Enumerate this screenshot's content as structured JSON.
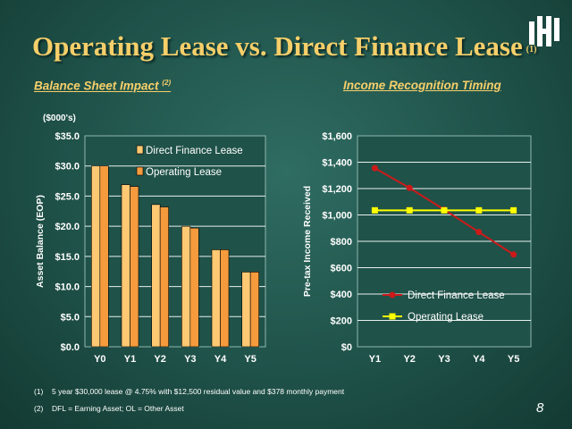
{
  "slide": {
    "title": "Operating Lease vs. Direct Finance Lease",
    "title_note": "(1)",
    "left_subtitle": "Balance Sheet Impact",
    "left_subtitle_note": "(2)",
    "right_subtitle": "Income Recognition Timing",
    "units": "($000's)",
    "footnotes": [
      {
        "num": "(1)",
        "text": "5 year $30,000 lease @ 4.75% with $12,500 residual value and $378 monthly payment"
      },
      {
        "num": "(2)",
        "text": "DFL = Earning Asset; OL = Other Asset"
      }
    ],
    "page_number": "8",
    "logo_icon": "company-logo-icon"
  },
  "colors": {
    "title": "#f6cf6a",
    "bar_dfl": "#ffc872",
    "bar_ol": "#f59b3d",
    "line_dfl": "#cc1a1a",
    "line_ol": "#ffff00",
    "plot_bg": "#1f5249"
  },
  "chart_data": [
    {
      "type": "bar",
      "ylabel": "Asset Balance (EOP)",
      "categories": [
        "Y0",
        "Y1",
        "Y2",
        "Y3",
        "Y4",
        "Y5"
      ],
      "series": [
        {
          "name": "Direct Finance Lease",
          "values": [
            30.0,
            26.9,
            23.6,
            20.0,
            16.1,
            12.4
          ]
        },
        {
          "name": "Operating Lease",
          "values": [
            30.0,
            26.6,
            23.2,
            19.7,
            16.1,
            12.4
          ]
        }
      ],
      "ylim": [
        0,
        35
      ],
      "yticks": [
        "$0.0",
        "$5.0",
        "$10.0",
        "$15.0",
        "$20.0",
        "$25.0",
        "$30.0",
        "$35.0"
      ],
      "grid": true,
      "legend": "top-right"
    },
    {
      "type": "line",
      "ylabel": "Pre-tax Income Received",
      "categories": [
        "Y1",
        "Y2",
        "Y3",
        "Y4",
        "Y5"
      ],
      "series": [
        {
          "name": "Direct Finance Lease",
          "values": [
            1355,
            1205,
            1040,
            870,
            700
          ]
        },
        {
          "name": "Operating Lease",
          "values": [
            1035,
            1035,
            1035,
            1035,
            1035
          ]
        }
      ],
      "ylim": [
        0,
        1600
      ],
      "yticks": [
        "$0",
        "$200",
        "$400",
        "$600",
        "$800",
        "$1,000",
        "$1,200",
        "$1,400",
        "$1,600"
      ],
      "grid": true,
      "legend": "bottom-right"
    }
  ]
}
